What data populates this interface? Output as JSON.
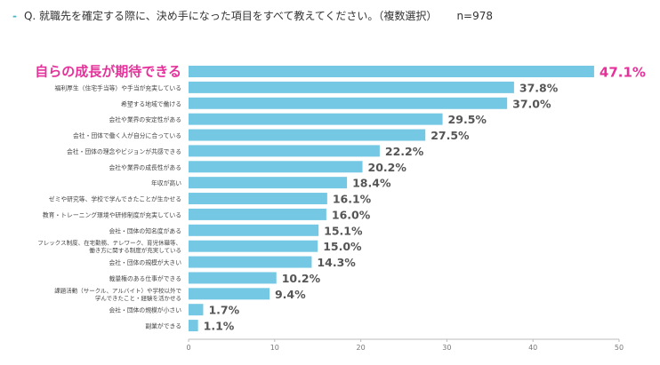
{
  "question": {
    "text": "Q. 就職先を確定する際に、決め手になった項目をすべて教えてください。（複数選択）",
    "n": "n=978"
  },
  "colors": {
    "bar": "#74c8e3",
    "highlight_text": "#e5329b",
    "value_text": "#555555",
    "label_text": "#444444",
    "axis": "#bbbbbb",
    "dash": "#3fb8c9"
  },
  "chart_data": {
    "type": "bar",
    "orientation": "horizontal",
    "categories": [
      [
        "自らの成長が期待できる"
      ],
      [
        "福利厚生（住宅手当等）や手当が充実している"
      ],
      [
        "希望する地域で働ける"
      ],
      [
        "会社や業界の安定性がある"
      ],
      [
        "会社・団体で働く人が自分に合っている"
      ],
      [
        "会社・団体の理念やビジョンが共感できる"
      ],
      [
        "会社や業界の成長性がある"
      ],
      [
        "年収が高い"
      ],
      [
        "ゼミや研究等、学校で学んできたことが生かせる"
      ],
      [
        "教育・トレーニング環境や研修制度が充実している"
      ],
      [
        "会社・団体の知名度がある"
      ],
      [
        "フレックス制度、在宅勤務、テレワーク、育児休職等、",
        "働き方に関する制度が充実している"
      ],
      [
        "会社・団体の規模が大きい"
      ],
      [
        "裁量権のある仕事ができる"
      ],
      [
        "課題活動（サークル、アルバイト）や学校以外で",
        "学んできたこと・経験を活かせる"
      ],
      [
        "会社・団体の規模が小さい"
      ],
      [
        "副業ができる"
      ]
    ],
    "values": [
      47.1,
      37.8,
      37.0,
      29.5,
      27.5,
      22.2,
      20.2,
      18.4,
      16.1,
      16.0,
      15.1,
      15.0,
      14.3,
      10.2,
      9.4,
      1.7,
      1.1
    ],
    "value_labels": [
      "47.1%",
      "37.8%",
      "37.0%",
      "29.5%",
      "27.5%",
      "22.2%",
      "20.2%",
      "18.4%",
      "16.1%",
      "16.0%",
      "15.1%",
      "15.0%",
      "14.3%",
      "10.2%",
      "9.4%",
      "1.7%",
      "1.1%"
    ],
    "highlight_index": 0,
    "xlim": [
      0,
      50
    ],
    "xticks": [
      0,
      10,
      20,
      30,
      40,
      50
    ],
    "grid": false,
    "legend": "none"
  }
}
